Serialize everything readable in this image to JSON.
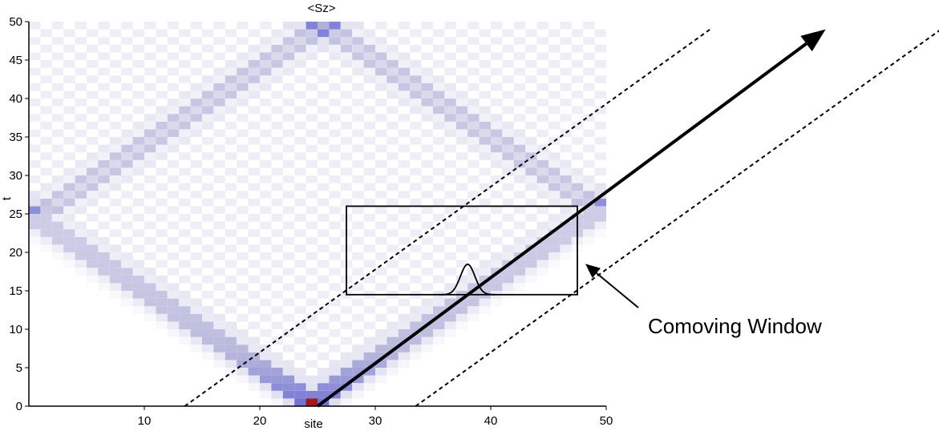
{
  "chart_data": {
    "type": "heatmap",
    "title": "<Sz>",
    "xlabel": "site",
    "ylabel": "t",
    "xlim": [
      0,
      50
    ],
    "ylim": [
      0,
      50
    ],
    "x_ticks": [
      10,
      20,
      30,
      40,
      50
    ],
    "y_ticks": [
      0,
      5,
      10,
      15,
      20,
      25,
      30,
      35,
      40,
      45,
      50
    ],
    "colormap": {
      "low": "#ffffff",
      "mid": "#b8b8dc",
      "high": "#1515d0",
      "peak": "#a01818"
    },
    "light_cone_front_velocity_sites_per_t": 1.0,
    "initial_site": 25,
    "annotations": {
      "window_label": "Comoving Window",
      "window_rect": {
        "x0": 27.5,
        "x1": 47.5,
        "t0": 14.5,
        "t1": 26.0
      },
      "wavepacket_center_site": 38,
      "dashed_lines": [
        {
          "from": [
            13.5,
            0
          ],
          "to": [
            59,
            49
          ]
        },
        {
          "from": [
            33.5,
            0
          ],
          "to": [
            79,
            49
          ]
        }
      ],
      "trajectory_arrow": {
        "from": [
          25,
          0
        ],
        "to": [
          69,
          49
        ]
      }
    }
  }
}
